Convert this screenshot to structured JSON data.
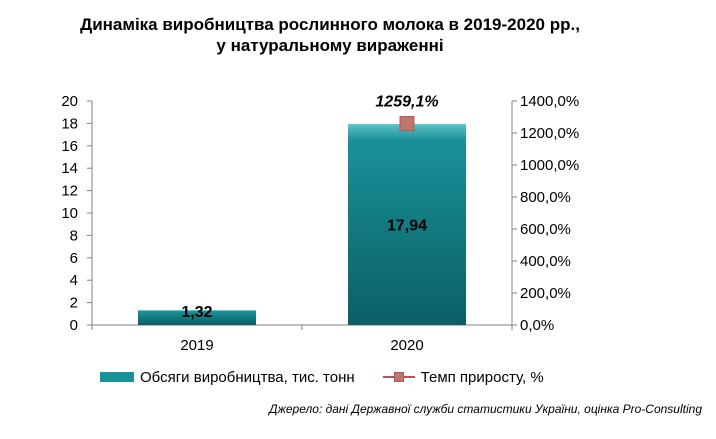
{
  "chart_data": {
    "type": "bar",
    "title_lines": [
      "Динаміка виробництва рослинного молока в 2019-2020 рр.,",
      "у натуральному вираженні"
    ],
    "categories": [
      "2019",
      "2020"
    ],
    "series": [
      {
        "name": "Обсяги виробництва, тис. тонн",
        "type": "bar",
        "axis": "left",
        "values": [
          1.32,
          17.94
        ],
        "labels": [
          "1,32",
          "17,94"
        ]
      },
      {
        "name": "Темп приросту, %",
        "type": "line",
        "axis": "right",
        "values": [
          null,
          1259.1
        ],
        "labels": [
          "",
          "1259,1%"
        ]
      }
    ],
    "y_left": {
      "min": 0,
      "max": 20,
      "step": 2,
      "ticks": [
        "0",
        "2",
        "4",
        "6",
        "8",
        "10",
        "12",
        "14",
        "16",
        "18",
        "20"
      ]
    },
    "y_right": {
      "min": 0,
      "max": 1400,
      "step": 200,
      "ticks": [
        "0,0%",
        "200,0%",
        "400,0%",
        "600,0%",
        "800,0%",
        "1000,0%",
        "1200,0%",
        "1400,0%"
      ]
    },
    "grid": false,
    "legend_position": "bottom",
    "source": "Джерело: дані Державної служби статистики України, оцінка Pro-Consulting"
  },
  "colors": {
    "bar_fill": "#1a9098",
    "bar_top": "#5cc4c8",
    "bar_dark": "#0b5f66",
    "line": "#c0504d",
    "marker": "#c0766e",
    "marker_border": "#a85a52",
    "axis": "#808080"
  }
}
